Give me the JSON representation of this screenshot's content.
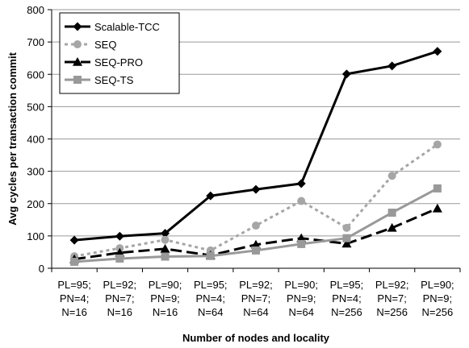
{
  "chart_data": {
    "type": "line",
    "title": "",
    "xlabel": "Number of nodes and locality",
    "ylabel": "Avg cycles per transaction commit",
    "ylim": [
      0,
      800
    ],
    "yticks": [
      "0",
      "100",
      "200",
      "300",
      "400",
      "500",
      "600",
      "700",
      "800"
    ],
    "grid": "horizontal",
    "legend": "top-left",
    "categories": [
      [
        "PL=95;",
        "PN=4;",
        "N=16"
      ],
      [
        "PL=92;",
        "PN=7;",
        "N=16"
      ],
      [
        "PL=90;",
        "PN=9;",
        "N=16"
      ],
      [
        "PL=95;",
        "PN=4;",
        "N=64"
      ],
      [
        "PL=92;",
        "PN=7;",
        "N=64"
      ],
      [
        "PL=90;",
        "PN=9;",
        "N=64"
      ],
      [
        "PL=95;",
        "PN=4;",
        "N=256"
      ],
      [
        "PL=92;",
        "PN=7;",
        "N=256"
      ],
      [
        "PL=90;",
        "PN=9;",
        "N=256"
      ]
    ],
    "series": [
      {
        "name": "Scalable-TCC",
        "values": [
          87,
          99,
          108,
          224,
          244,
          262,
          601,
          626,
          671
        ],
        "color": "#000000",
        "marker": "diamond",
        "dash": "solid"
      },
      {
        "name": "SEQ",
        "values": [
          37,
          62,
          88,
          55,
          132,
          208,
          125,
          286,
          383
        ],
        "color": "#a6a6a6",
        "marker": "circle",
        "dash": "dotted"
      },
      {
        "name": "SEQ-PRO",
        "values": [
          28,
          48,
          60,
          40,
          73,
          93,
          76,
          125,
          185
        ],
        "color": "#000000",
        "marker": "triangle",
        "dash": "dashed"
      },
      {
        "name": "SEQ-TS",
        "values": [
          20,
          30,
          36,
          38,
          55,
          75,
          93,
          172,
          247
        ],
        "color": "#999999",
        "marker": "square",
        "dash": "solid"
      }
    ]
  }
}
